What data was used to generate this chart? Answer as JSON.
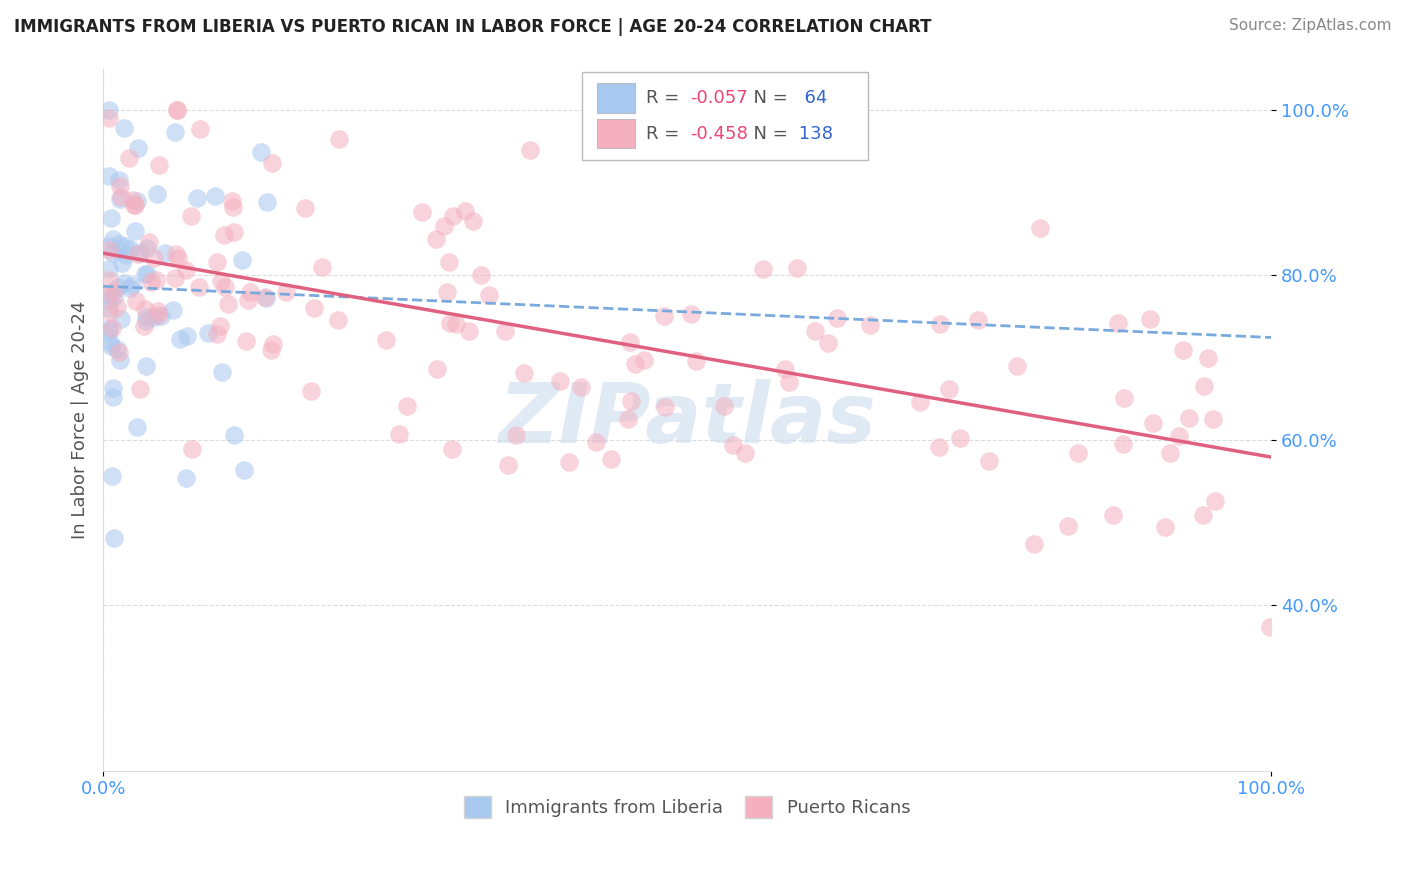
{
  "title": "IMMIGRANTS FROM LIBERIA VS PUERTO RICAN IN LABOR FORCE | AGE 20-24 CORRELATION CHART",
  "source": "Source: ZipAtlas.com",
  "ylabel": "In Labor Force | Age 20-24",
  "legend_label1": "Immigrants from Liberia",
  "legend_label2": "Puerto Ricans",
  "R1": -0.057,
  "N1": 64,
  "R2": -0.458,
  "N2": 138,
  "color1": "#a8c8f0",
  "color2": "#f5b0c0",
  "trendline1_color": "#7aaadd",
  "trendline2_color": "#e06080",
  "watermark_text": "ZIPatlas",
  "watermark_color": "#ccdded",
  "xlim": [
    0.0,
    1.0
  ],
  "ylim": [
    0.2,
    1.05
  ],
  "yticks": [
    0.4,
    0.6,
    0.8,
    1.0
  ],
  "ytick_labels": [
    "40.0%",
    "60.0%",
    "80.0%",
    "100.0%"
  ],
  "xtick_labels": [
    "0.0%",
    "100.0%"
  ],
  "tick_color": "#4499ff",
  "grid_color": "#dddddd",
  "title_color": "#222222",
  "source_color": "#888888",
  "ylabel_color": "#555555",
  "scatter_size": 180,
  "scatter_alpha": 0.55,
  "legend_box_color": "#bbbbbb",
  "R_color": "#ee4477",
  "N_color": "#3366cc",
  "label_color": "#555555"
}
